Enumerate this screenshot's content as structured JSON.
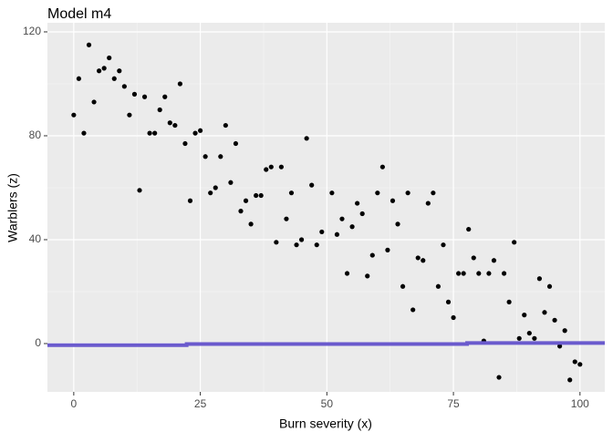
{
  "chart_data": {
    "type": "scatter",
    "title": "Model m4",
    "x_label": "Burn severity (x)",
    "y_label": "Warblers (z)",
    "xlim": [
      -5.2,
      104.9
    ],
    "ylim": [
      -18.6,
      123.5
    ],
    "xticks": [
      0,
      25,
      50,
      75,
      100
    ],
    "yticks": [
      0,
      40,
      80,
      120
    ],
    "x_minor_ticks": [
      12.5,
      37.5,
      62.5,
      87.5
    ],
    "y_minor_ticks": [
      20,
      60,
      100
    ],
    "grid": true,
    "series": [
      {
        "type": "scatter",
        "color": "#000000",
        "x": [
          0,
          1,
          2,
          3,
          4,
          5,
          6,
          7,
          8,
          9,
          10,
          11,
          12,
          13,
          14,
          15,
          16,
          17,
          18,
          19,
          20,
          21,
          22,
          23,
          24,
          25,
          26,
          27,
          28,
          29,
          30,
          31,
          32,
          33,
          34,
          35,
          36,
          37,
          38,
          39,
          40,
          41,
          42,
          43,
          44,
          45,
          46,
          47,
          48,
          49,
          51,
          52,
          53,
          54,
          55,
          56,
          57,
          58,
          59,
          60,
          61,
          62,
          63,
          64,
          65,
          66,
          67,
          68,
          69,
          70,
          71,
          72,
          73,
          74,
          75,
          76,
          77,
          78,
          79,
          80,
          81,
          82,
          83,
          84,
          85,
          86,
          87,
          88,
          89,
          90,
          91,
          92,
          93,
          94,
          95,
          96,
          97,
          98,
          99,
          100
        ],
        "values": [
          88,
          102,
          81,
          115,
          93,
          105,
          106,
          110,
          102,
          105,
          99,
          88,
          96,
          59,
          95,
          81,
          81,
          90,
          95,
          85,
          84,
          100,
          77,
          55,
          81,
          82,
          72,
          58,
          60,
          72,
          84,
          62,
          77,
          51,
          55,
          46,
          57,
          57,
          67,
          68,
          39,
          68,
          48,
          58,
          38,
          40,
          79,
          61,
          38,
          43,
          58,
          42,
          48,
          27,
          45,
          54,
          50,
          26,
          34,
          58,
          68,
          36,
          55,
          46,
          22,
          58,
          13,
          33,
          32,
          54,
          58,
          22,
          38,
          16,
          10,
          27,
          27,
          44,
          33,
          27,
          1,
          27,
          32,
          -13,
          27,
          16,
          39,
          2,
          11,
          4,
          2,
          25,
          12,
          22,
          9,
          -1,
          5,
          -14,
          -7,
          -8
        ]
      },
      {
        "type": "line",
        "color": "#6a5acd",
        "x": [
          -5.2,
          22.3,
          22.3,
          77.7,
          77.7,
          104.9
        ],
        "values": [
          -0.6,
          -0.6,
          -0.2,
          -0.2,
          0.2,
          0.2
        ]
      }
    ]
  }
}
